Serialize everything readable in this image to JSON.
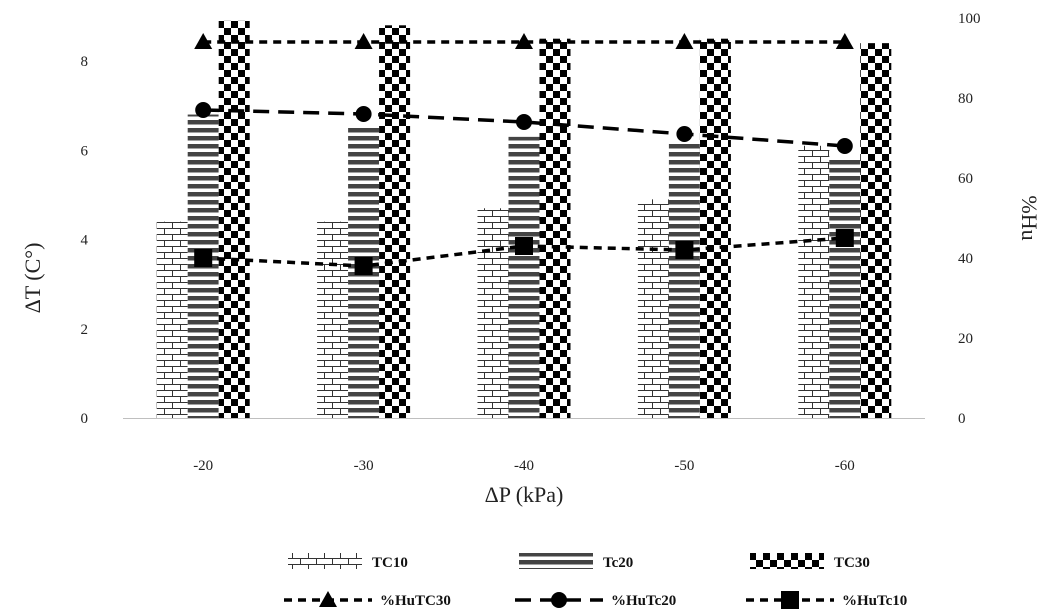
{
  "chart_data": {
    "type": "bar",
    "categories": [
      "-20",
      "-30",
      "-40",
      "-50",
      "-60"
    ],
    "xlabel": "ΔP (kPa)",
    "ylabel": "ΔT (C°)",
    "y2label": "%Hu",
    "ylim": [
      0,
      8.9
    ],
    "y2lim": [
      0,
      100
    ],
    "yticks": [
      0,
      2,
      4,
      6,
      8
    ],
    "y2ticks": [
      0,
      20,
      40,
      60,
      80,
      100
    ],
    "grid": false,
    "legend_position": "bottom",
    "bar_series": [
      {
        "name": "TC10",
        "pattern": "brick",
        "values": [
          4.4,
          4.4,
          4.7,
          4.9,
          6.1
        ]
      },
      {
        "name": "Tc20",
        "pattern": "horizontal-stripes",
        "values": [
          6.8,
          6.5,
          6.3,
          6.2,
          5.8
        ]
      },
      {
        "name": "TC30",
        "pattern": "checkerboard",
        "values": [
          8.9,
          8.8,
          8.5,
          8.5,
          8.4
        ]
      }
    ],
    "line_series": [
      {
        "name": "%HuTC30",
        "marker": "triangle",
        "dash": "short",
        "axis": "y2",
        "values": [
          94,
          94,
          94,
          94,
          94
        ]
      },
      {
        "name": "%HuTc20",
        "marker": "circle",
        "dash": "long",
        "axis": "y2",
        "values": [
          77,
          76,
          74,
          71,
          68
        ]
      },
      {
        "name": "%HuTc10",
        "marker": "square",
        "dash": "short",
        "axis": "y2",
        "values": [
          40,
          38,
          43,
          42,
          45
        ]
      }
    ]
  }
}
